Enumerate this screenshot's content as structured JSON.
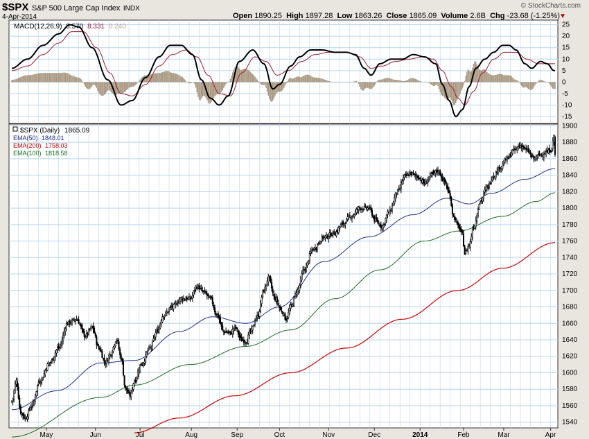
{
  "header": {
    "symbol": "$SPX",
    "name": "S&P 500 Large Cap Index",
    "exchange": "INDX",
    "date": "4-Apr-2014",
    "watermark": "© StockCharts.com",
    "open_label": "Open",
    "open": "1890.25",
    "high_label": "High",
    "high": "1897.28",
    "low_label": "Low",
    "low": "1863.26",
    "close_label": "Close",
    "close": "1865.09",
    "volume_label": "Volume",
    "volume": "2.6B",
    "chg_label": "Chg",
    "chg": "-23.68 (-1.25%)",
    "down_arrow": "▼"
  },
  "colors": {
    "background": "#e9e6e0",
    "grid": "#b7d5ee",
    "candle": "#000000",
    "ema50": "#1f2d8c",
    "ema100": "#1b6b1b",
    "ema200": "#cc0000",
    "macd_line": "#000000",
    "signal_line": "#9b1b30",
    "histogram": "#a99880"
  },
  "chart_data": [
    {
      "type": "line",
      "panel": "MACD",
      "legend": {
        "label": "MACD(12,26,9)",
        "macd": "8.570",
        "signal": "8.331",
        "hist": "0.240"
      },
      "ylim": [
        -18,
        27
      ],
      "y_ticks": [
        "25",
        "20",
        "15",
        "10",
        "5",
        "0",
        "-5",
        "-10",
        "-15"
      ],
      "y_tick_values": [
        25,
        20,
        15,
        10,
        5,
        0,
        -5,
        -10,
        -15
      ],
      "macd_anchors": [
        [
          0,
          6
        ],
        [
          14,
          10
        ],
        [
          28,
          16
        ],
        [
          42,
          21
        ],
        [
          52,
          25
        ],
        [
          60,
          24
        ],
        [
          72,
          15
        ],
        [
          86,
          1
        ],
        [
          98,
          -10
        ],
        [
          108,
          -8
        ],
        [
          120,
          2
        ],
        [
          132,
          11
        ],
        [
          142,
          16
        ],
        [
          152,
          16
        ],
        [
          162,
          12
        ],
        [
          170,
          1
        ],
        [
          178,
          -7
        ],
        [
          186,
          -10
        ],
        [
          194,
          -6
        ],
        [
          204,
          9
        ],
        [
          216,
          14
        ],
        [
          226,
          8
        ],
        [
          234,
          -3
        ],
        [
          240,
          -1
        ],
        [
          250,
          7
        ],
        [
          258,
          11
        ],
        [
          268,
          14
        ],
        [
          278,
          14
        ],
        [
          290,
          13
        ],
        [
          300,
          13
        ],
        [
          308,
          12
        ],
        [
          316,
          6
        ],
        [
          322,
          3
        ],
        [
          330,
          8
        ],
        [
          340,
          10
        ],
        [
          350,
          10
        ],
        [
          360,
          12
        ],
        [
          370,
          11
        ],
        [
          380,
          8
        ],
        [
          386,
          -1
        ],
        [
          392,
          -8
        ],
        [
          398,
          -15
        ],
        [
          404,
          -12
        ],
        [
          410,
          -2
        ],
        [
          416,
          6
        ],
        [
          424,
          10
        ],
        [
          432,
          13
        ],
        [
          440,
          16
        ],
        [
          446,
          16
        ],
        [
          452,
          14
        ],
        [
          460,
          8
        ],
        [
          466,
          6
        ],
        [
          474,
          9
        ],
        [
          480,
          8
        ],
        [
          486,
          5
        ]
      ],
      "signal_anchors": [
        [
          0,
          5
        ],
        [
          14,
          7
        ],
        [
          28,
          12
        ],
        [
          42,
          17
        ],
        [
          54,
          22
        ],
        [
          64,
          22
        ],
        [
          76,
          15
        ],
        [
          88,
          4
        ],
        [
          98,
          -5
        ],
        [
          108,
          -6
        ],
        [
          120,
          -1
        ],
        [
          132,
          7
        ],
        [
          144,
          12
        ],
        [
          156,
          14
        ],
        [
          166,
          11
        ],
        [
          176,
          3
        ],
        [
          186,
          -5
        ],
        [
          196,
          -6
        ],
        [
          206,
          4
        ],
        [
          218,
          11
        ],
        [
          228,
          9
        ],
        [
          238,
          3
        ],
        [
          248,
          5
        ],
        [
          260,
          9
        ],
        [
          272,
          12
        ],
        [
          284,
          13
        ],
        [
          300,
          13
        ],
        [
          312,
          11
        ],
        [
          322,
          6
        ],
        [
          332,
          7
        ],
        [
          344,
          9
        ],
        [
          356,
          10
        ],
        [
          368,
          11
        ],
        [
          378,
          10
        ],
        [
          386,
          5
        ],
        [
          394,
          -2
        ],
        [
          400,
          -7
        ],
        [
          406,
          -10
        ],
        [
          414,
          -4
        ],
        [
          422,
          4
        ],
        [
          432,
          10
        ],
        [
          442,
          13
        ],
        [
          452,
          13
        ],
        [
          462,
          10
        ],
        [
          472,
          8
        ],
        [
          480,
          8
        ],
        [
          486,
          8
        ]
      ]
    },
    {
      "type": "line",
      "panel": "Price",
      "legend": [
        {
          "label": "$SPX (Daily)",
          "value": "1865.09"
        },
        {
          "label": "EMA(50)",
          "value": "1848.01"
        },
        {
          "label": "EMA(200)",
          "value": "1758.03"
        },
        {
          "label": "EMA(100)",
          "value": "1818.58"
        }
      ],
      "ylim": [
        1533,
        1902
      ],
      "y_ticks": [
        "1900",
        "1880",
        "1860",
        "1840",
        "1820",
        "1800",
        "1780",
        "1760",
        "1740",
        "1720",
        "1700",
        "1680",
        "1660",
        "1640",
        "1620",
        "1600",
        "1580",
        "1560",
        "1540"
      ],
      "y_tick_values": [
        1900,
        1880,
        1860,
        1840,
        1820,
        1800,
        1780,
        1760,
        1740,
        1720,
        1700,
        1680,
        1660,
        1640,
        1620,
        1600,
        1580,
        1560,
        1540
      ],
      "x_ticks": [
        "May",
        "Jun",
        "Jul",
        "Aug",
        "Sep",
        "Oct",
        "Nov",
        "Dec",
        "2014",
        "Feb",
        "Mar",
        "Apr"
      ],
      "x_tick_bars": [
        31,
        75,
        115,
        161,
        202,
        240,
        284,
        325,
        366,
        405,
        441,
        483
      ],
      "bar_count": 488,
      "close_anchors": [
        [
          0,
          1565
        ],
        [
          4,
          1590
        ],
        [
          8,
          1552
        ],
        [
          12,
          1545
        ],
        [
          18,
          1560
        ],
        [
          25,
          1590
        ],
        [
          34,
          1612
        ],
        [
          42,
          1630
        ],
        [
          50,
          1660
        ],
        [
          58,
          1665
        ],
        [
          66,
          1645
        ],
        [
          72,
          1655
        ],
        [
          78,
          1630
        ],
        [
          84,
          1612
        ],
        [
          88,
          1622
        ],
        [
          94,
          1640
        ],
        [
          98,
          1618
        ],
        [
          102,
          1580
        ],
        [
          106,
          1572
        ],
        [
          110,
          1590
        ],
        [
          116,
          1610
        ],
        [
          124,
          1630
        ],
        [
          130,
          1650
        ],
        [
          136,
          1670
        ],
        [
          144,
          1680
        ],
        [
          152,
          1690
        ],
        [
          160,
          1690
        ],
        [
          166,
          1705
        ],
        [
          172,
          1698
        ],
        [
          178,
          1690
        ],
        [
          184,
          1670
        ],
        [
          190,
          1650
        ],
        [
          196,
          1648
        ],
        [
          200,
          1655
        ],
        [
          206,
          1640
        ],
        [
          210,
          1638
        ],
        [
          214,
          1650
        ],
        [
          220,
          1668
        ],
        [
          226,
          1700
        ],
        [
          230,
          1715
        ],
        [
          236,
          1690
        ],
        [
          242,
          1675
        ],
        [
          246,
          1665
        ],
        [
          250,
          1680
        ],
        [
          256,
          1700
        ],
        [
          262,
          1725
        ],
        [
          270,
          1750
        ],
        [
          280,
          1765
        ],
        [
          290,
          1770
        ],
        [
          296,
          1780
        ],
        [
          304,
          1790
        ],
        [
          312,
          1800
        ],
        [
          320,
          1800
        ],
        [
          326,
          1785
        ],
        [
          332,
          1778
        ],
        [
          338,
          1795
        ],
        [
          346,
          1820
        ],
        [
          352,
          1838
        ],
        [
          358,
          1842
        ],
        [
          364,
          1838
        ],
        [
          370,
          1830
        ],
        [
          376,
          1840
        ],
        [
          382,
          1845
        ],
        [
          388,
          1832
        ],
        [
          392,
          1818
        ],
        [
          396,
          1790
        ],
        [
          400,
          1778
        ],
        [
          404,
          1768
        ],
        [
          406,
          1745
        ],
        [
          410,
          1755
        ],
        [
          414,
          1778
        ],
        [
          420,
          1808
        ],
        [
          426,
          1825
        ],
        [
          432,
          1840
        ],
        [
          438,
          1850
        ],
        [
          444,
          1860
        ],
        [
          450,
          1870
        ],
        [
          456,
          1876
        ],
        [
          462,
          1870
        ],
        [
          468,
          1860
        ],
        [
          474,
          1865
        ],
        [
          480,
          1868
        ],
        [
          484,
          1872
        ],
        [
          486,
          1888
        ],
        [
          487,
          1865
        ]
      ],
      "ema50_anchors": [
        [
          0,
          1555
        ],
        [
          40,
          1578
        ],
        [
          80,
          1612
        ],
        [
          110,
          1615
        ],
        [
          150,
          1650
        ],
        [
          180,
          1668
        ],
        [
          210,
          1660
        ],
        [
          240,
          1680
        ],
        [
          280,
          1735
        ],
        [
          320,
          1765
        ],
        [
          360,
          1792
        ],
        [
          390,
          1812
        ],
        [
          410,
          1805
        ],
        [
          430,
          1818
        ],
        [
          460,
          1835
        ],
        [
          487,
          1848
        ]
      ],
      "ema100_anchors": [
        [
          0,
          1522
        ],
        [
          80,
          1570
        ],
        [
          110,
          1585
        ],
        [
          160,
          1610
        ],
        [
          210,
          1632
        ],
        [
          250,
          1652
        ],
        [
          290,
          1690
        ],
        [
          330,
          1725
        ],
        [
          370,
          1760
        ],
        [
          400,
          1772
        ],
        [
          440,
          1790
        ],
        [
          470,
          1808
        ],
        [
          487,
          1818.58
        ]
      ],
      "ema200_anchors": [
        [
          110,
          1527
        ],
        [
          150,
          1545
        ],
        [
          200,
          1572
        ],
        [
          250,
          1600
        ],
        [
          300,
          1630
        ],
        [
          350,
          1665
        ],
        [
          400,
          1700
        ],
        [
          440,
          1727
        ],
        [
          487,
          1758.03
        ]
      ]
    }
  ]
}
